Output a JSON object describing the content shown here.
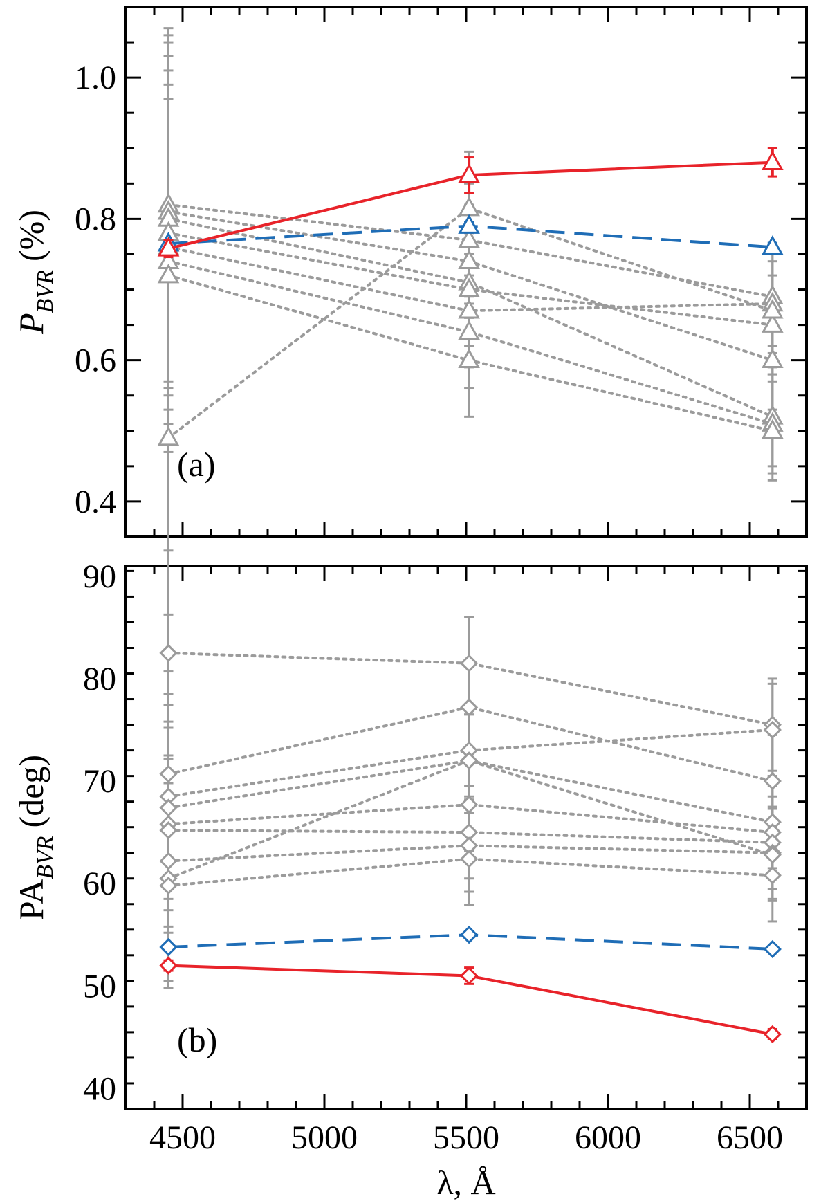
{
  "chart_data": [
    {
      "type": "line",
      "panel_label": "(a)",
      "ylabel": {
        "main": "P",
        "sub": "BVR",
        "unit": "(%)"
      },
      "ylim": [
        0.35,
        1.1
      ],
      "yticks": [
        0.4,
        0.6,
        0.8,
        1.0
      ],
      "ytick_labels": [
        "0.4",
        "0.6",
        "0.8",
        "1.0"
      ],
      "x": [
        4450,
        5510,
        6580
      ],
      "marker": "triangle",
      "series": [
        {
          "name": "red",
          "color": "#e8232a",
          "style": "solid",
          "values": [
            0.758,
            0.862,
            0.88
          ],
          "errors": [
            0.012,
            0.025,
            0.02
          ]
        },
        {
          "name": "blue",
          "color": "#1f6db6",
          "style": "dashed",
          "values": [
            0.765,
            0.79,
            0.76
          ],
          "errors": [
            0.005,
            0.006,
            0.006
          ]
        }
      ],
      "gray_series": {
        "color": "#9b9b9b",
        "style": "dotted",
        "values": [
          [
            0.82,
            0.77,
            0.69
          ],
          [
            0.81,
            0.74,
            0.6
          ],
          [
            0.8,
            0.71,
            0.52
          ],
          [
            0.78,
            0.7,
            0.65
          ],
          [
            0.76,
            0.67,
            0.68
          ],
          [
            0.74,
            0.64,
            0.51
          ],
          [
            0.72,
            0.6,
            0.5
          ],
          [
            0.49,
            0.815,
            0.67
          ]
        ],
        "errors": [
          0.25,
          0.08,
          0.07
        ]
      }
    },
    {
      "type": "line",
      "panel_label": "(b)",
      "ylabel": {
        "main": "PA",
        "sub": "BVR",
        "unit": "(deg)"
      },
      "ylim": [
        38,
        91
      ],
      "yticks": [
        40,
        50,
        60,
        70,
        80,
        90
      ],
      "ytick_labels": [
        "40",
        "50",
        "60",
        "70",
        "80",
        "90"
      ],
      "xlabel": "λ, Å",
      "xlim": [
        4300,
        6700
      ],
      "xticks": [
        4500,
        5000,
        5500,
        6000,
        6500
      ],
      "xtick_labels": [
        "4500",
        "5000",
        "5500",
        "6000",
        "6500"
      ],
      "x": [
        4450,
        5510,
        6580
      ],
      "marker": "diamond",
      "series": [
        {
          "name": "red",
          "color": "#e8232a",
          "style": "solid",
          "values": [
            52.0,
            51.0,
            45.3
          ],
          "errors": [
            0.5,
            0.8,
            0.5
          ]
        },
        {
          "name": "blue",
          "color": "#1f6db6",
          "style": "dashed",
          "values": [
            53.8,
            55.0,
            53.6
          ],
          "errors": [
            0.3,
            0.3,
            0.3
          ]
        }
      ],
      "gray_series": {
        "color": "#9b9b9b",
        "style": "dotted",
        "values": [
          [
            82.5,
            81.5,
            75.5
          ],
          [
            70.7,
            77.2,
            70.0
          ],
          [
            68.5,
            73.0,
            75.0
          ],
          [
            67.4,
            72.0,
            66.0
          ],
          [
            65.8,
            67.7,
            65.0
          ],
          [
            65.2,
            65.0,
            64.0
          ],
          [
            62.2,
            63.7,
            63.0
          ],
          [
            60.5,
            72.0,
            62.8
          ],
          [
            59.8,
            62.4,
            60.8
          ]
        ],
        "errors": [
          10.0,
          4.5,
          4.5
        ]
      }
    }
  ]
}
